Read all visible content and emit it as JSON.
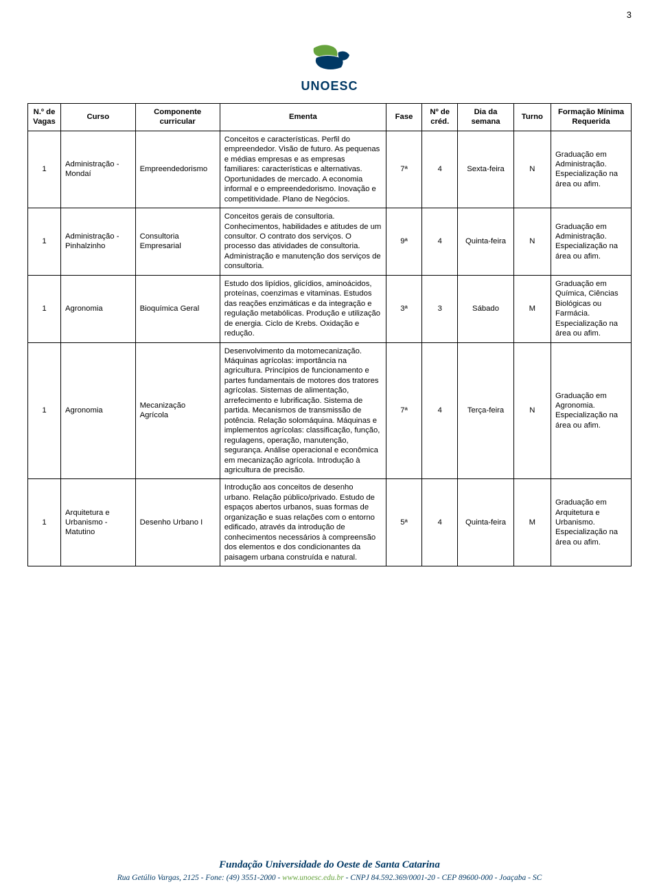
{
  "page_number": "3",
  "logo_text": "UNOESC",
  "logo_colors": {
    "blue": "#003864",
    "green": "#66a33d"
  },
  "table": {
    "columns": [
      "N.º de Vagas",
      "Curso",
      "Componente curricular",
      "Ementa",
      "Fase",
      "Nº de créd.",
      "Dia da semana",
      "Turno",
      "Formação Mínima Requerida"
    ],
    "rows": [
      {
        "vagas": "1",
        "curso": "Administração - Mondaí",
        "componente": "Empreendedorismo",
        "ementa": "Conceitos e características. Perfil do empreendedor. Visão de futuro. As pequenas e médias empresas e as empresas familiares: características e alternativas. Oportunidades de mercado. A economia informal e o empreendedorismo. Inovação e competitividade. Plano de Negócios.",
        "fase": "7ª",
        "cred": "4",
        "dia": "Sexta-feira",
        "turno": "N",
        "formacao": "Graduação em Administração. Especialização na área ou afim."
      },
      {
        "vagas": "1",
        "curso": "Administração - Pinhalzinho",
        "componente": "Consultoria Empresarial",
        "ementa": "Conceitos gerais de consultoria. Conhecimentos, habilidades e atitudes de um consultor. O contrato dos serviços. O processo das atividades de consultoria. Administração e manutenção dos serviços de consultoria.",
        "fase": "9ª",
        "cred": "4",
        "dia": "Quinta-feira",
        "turno": "N",
        "formacao": "Graduação em Administração. Especialização na área ou afim."
      },
      {
        "vagas": "1",
        "curso": "Agronomia",
        "componente": "Bioquímica Geral",
        "ementa": "Estudo dos lipídios, glicídios, aminoácidos, proteínas, coenzimas e vitaminas. Estudos das reações enzimáticas e da integração e regulação metabólicas. Produção e utilização de energia. Ciclo de Krebs. Oxidação e redução.",
        "fase": "3ª",
        "cred": "3",
        "dia": "Sábado",
        "turno": "M",
        "formacao": "Graduação em Química, Ciências Biológicas ou Farmácia. Especialização na área ou afim."
      },
      {
        "vagas": "1",
        "curso": "Agronomia",
        "componente": "Mecanização Agrícola",
        "ementa": "Desenvolvimento da motomecanização. Máquinas agrícolas: importância na agricultura. Princípios de funcionamento e partes fundamentais de motores dos tratores agrícolas. Sistemas de alimentação, arrefecimento e lubrificação. Sistema de partida. Mecanismos de transmissão de potência. Relação solomáquina. Máquinas e implementos agrícolas: classificação, função, regulagens, operação, manutenção, segurança. Análise operacional e econômica em mecanização agrícola. Introdução à agricultura de precisão.",
        "fase": "7ª",
        "cred": "4",
        "dia": "Terça-feira",
        "turno": "N",
        "formacao": "Graduação em Agronomia. Especialização na área ou afim."
      },
      {
        "vagas": "1",
        "curso": "Arquitetura e Urbanismo - Matutino",
        "componente": "Desenho Urbano I",
        "ementa": "Introdução aos conceitos de desenho urbano. Relação público/privado. Estudo de espaços abertos urbanos, suas formas de organização e suas relações com o entorno edificado, através da introdução de conhecimentos necessários à compreensão dos elementos e dos condicionantes da paisagem urbana construída e natural.",
        "fase": "5ª",
        "cred": "4",
        "dia": "Quinta-feira",
        "turno": "M",
        "formacao": "Graduação em Arquitetura e Urbanismo. Especialização na área ou afim."
      }
    ]
  },
  "footer": {
    "title": "Fundação Universidade do Oeste de Santa Catarina",
    "line_prefix": "Rua Getúlio Vargas, 2125 - Fone: (49) 3551-2000 - ",
    "line_url": "www.unoesc.edu.br",
    "line_suffix": " -  CNPJ 84.592.369/0001-20 - CEP 89600-000 - Joaçaba - SC"
  }
}
